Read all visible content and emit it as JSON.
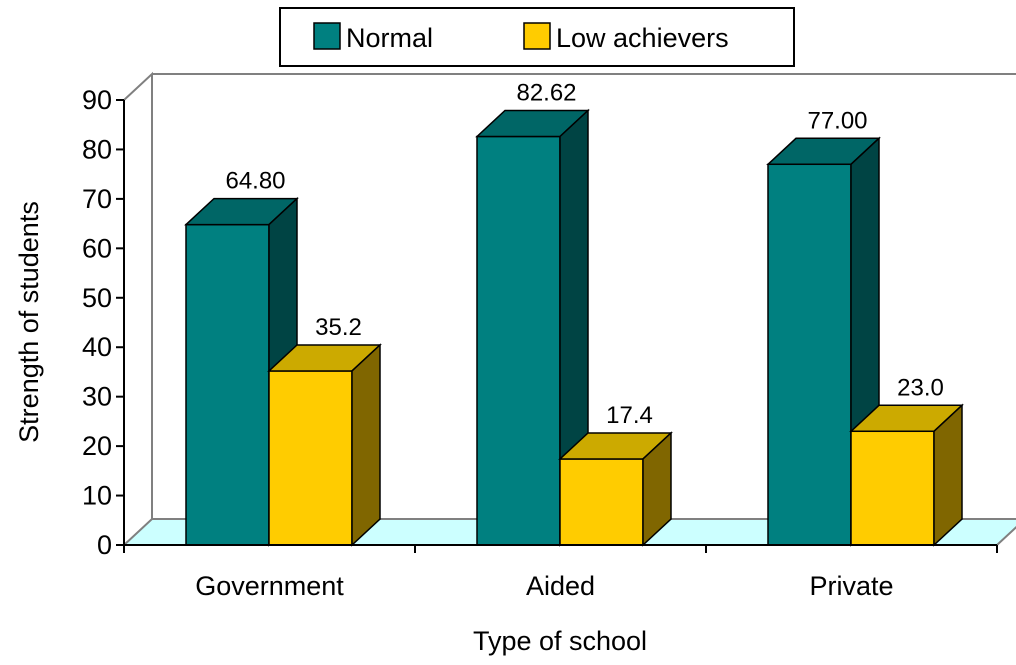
{
  "chart_data": {
    "type": "bar",
    "title": "",
    "xlabel": "Type of school",
    "ylabel": "Strength of students",
    "categories": [
      "Government",
      "Aided",
      "Private"
    ],
    "series": [
      {
        "name": "Normal",
        "values": [
          64.8,
          82.62,
          77.0
        ],
        "labels": [
          "64.80",
          "82.62",
          "77.00"
        ]
      },
      {
        "name": "Low achievers",
        "values": [
          35.2,
          17.4,
          23.0
        ],
        "labels": [
          "35.2",
          "17.4",
          "23.0"
        ]
      }
    ],
    "ylim": [
      0,
      90
    ],
    "yticks": [
      "0",
      "10",
      "20",
      "30",
      "40",
      "50",
      "60",
      "70",
      "80",
      "90"
    ],
    "grid": false,
    "legend": "top-center",
    "style": "3d-clustered-column"
  },
  "colors": {
    "normal_front": "#008080",
    "normal_top": "#006666",
    "normal_side": "#004444",
    "low_front": "#ffcc00",
    "low_top": "#ccaa00",
    "low_side": "#806600",
    "floor": "#ccffff"
  }
}
